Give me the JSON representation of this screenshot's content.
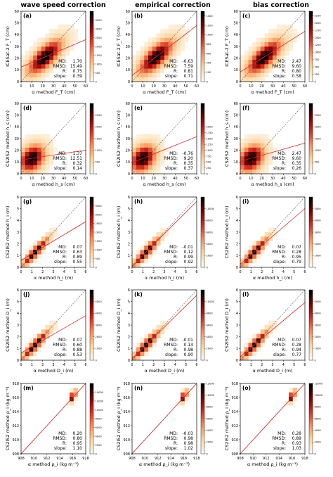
{
  "columns": [
    {
      "title": "wave speed correction",
      "stats_method": "wave speed correction"
    },
    {
      "title": "empirical correction",
      "stats_method": "empirical correction"
    },
    {
      "title": "bias correction",
      "stats_method": "bias correction"
    }
  ],
  "stat_labels": [
    "MD:",
    "RMSD:",
    "R:",
    "slope:"
  ],
  "rows": [
    {
      "xlabel": "α method F_T (cm)",
      "ylabel": "ICESat-2 F_T (cm)",
      "range": [
        0,
        60
      ],
      "ticks": [
        0,
        10,
        20,
        30,
        40,
        50,
        60
      ],
      "xtick_labels": [
        "0",
        "10",
        "20",
        "30",
        "40",
        "50",
        "60"
      ],
      "ytick_labels": [
        "0",
        "10",
        "20",
        "30",
        "40",
        "50",
        "60"
      ],
      "center": [
        0.37,
        0.35
      ],
      "spread": [
        0.15,
        0.14
      ],
      "rho": 0.72,
      "tail": 0.06
    },
    {
      "xlabel": "α method h_s (cm)",
      "ylabel": "CS2IS2 method h_s (cm)",
      "range": [
        0,
        60
      ],
      "ticks": [
        0,
        10,
        20,
        30,
        40,
        50,
        60
      ],
      "xtick_labels": [
        "0",
        "10",
        "20",
        "30",
        "40",
        "50",
        "60"
      ],
      "ytick_labels": [
        "0",
        "10",
        "20",
        "30",
        "40",
        "50",
        "60"
      ],
      "center": [
        0.17,
        0.22
      ],
      "spread": [
        0.11,
        0.11
      ],
      "rho": 0.3,
      "tail": 0.06
    },
    {
      "xlabel": "α method h_i (m)",
      "ylabel": "CS2IS2 method h_i (m)",
      "range": [
        0,
        6
      ],
      "ticks": [
        0,
        1,
        2,
        3,
        4,
        5,
        6
      ],
      "xtick_labels": [
        "0",
        "1",
        "2",
        "3",
        "4",
        "5",
        "6"
      ],
      "ytick_labels": [
        "0",
        "1",
        "2",
        "3",
        "4",
        "5",
        "6"
      ],
      "center": [
        0.22,
        0.22
      ],
      "spread": [
        0.12,
        0.12
      ],
      "rho": 0.93,
      "tail": 0.02
    },
    {
      "xlabel": "α method D_i (m)",
      "ylabel": "CS2IS2 method D_i (m)",
      "range": [
        0,
        6
      ],
      "ticks": [
        0,
        1,
        2,
        3,
        4,
        5,
        6
      ],
      "xtick_labels": [
        "0",
        "1",
        "2",
        "3",
        "4",
        "5",
        "6"
      ],
      "ytick_labels": [
        "0",
        "1",
        "2",
        "3",
        "4",
        "5",
        "6"
      ],
      "center": [
        0.22,
        0.22
      ],
      "spread": [
        0.12,
        0.12
      ],
      "rho": 0.93,
      "tail": 0.02
    },
    {
      "xlabel": "α method ρ_i (kg m⁻³)",
      "ylabel": "CS2IS2 method ρ_i (kg m⁻³)",
      "range": [
        908,
        918
      ],
      "ticks": [
        908,
        910,
        912,
        914,
        916,
        918
      ],
      "xtick_labels": [
        "908",
        "910",
        "912",
        "914",
        "916",
        "918"
      ],
      "ytick_labels": [
        "908",
        "910",
        "912",
        "914",
        "916",
        "918"
      ],
      "center": [
        0.8,
        0.82
      ],
      "spread": [
        0.03,
        0.05
      ],
      "rho": 0.6,
      "tail": 0.0
    }
  ],
  "panels": [
    {
      "label": "(a)",
      "MD": "1.70",
      "RMSD": "15.49",
      "R": "0.75",
      "slope": "0.39",
      "fit_slope": 0.39,
      "cmax": 4000,
      "cticks": [
        "0",
        "500",
        "1000",
        "1500",
        "2000",
        "2500",
        "3000",
        "3500"
      ]
    },
    {
      "label": "(b)",
      "MD": "-0.63",
      "RMSD": "7.59",
      "R": "0.81",
      "slope": "0.71",
      "fit_slope": 0.71,
      "cmax": 1500,
      "cticks": [
        "0",
        "200",
        "400",
        "600",
        "800",
        "1000",
        "1200",
        "1400"
      ]
    },
    {
      "label": "(c)",
      "MD": "2.47",
      "RMSD": "9.60",
      "R": "0.80",
      "slope": "0.58",
      "fit_slope": 0.58,
      "cmax": 2400,
      "cticks": [
        "0",
        "250",
        "500",
        "750",
        "1000",
        "1250",
        "1500",
        "1750",
        "2000",
        "2250"
      ]
    },
    {
      "label": "(d)",
      "MD": "1.37",
      "RMSD": "12.51",
      "R": "0.32",
      "slope": "0.14",
      "fit_slope": 0.14,
      "cmax": 3000,
      "cticks": [
        "0",
        "500",
        "1000",
        "1500",
        "2000",
        "2500"
      ]
    },
    {
      "label": "(e)",
      "MD": "-0.76",
      "RMSD": "9.20",
      "R": "0.35",
      "slope": "0.37",
      "fit_slope": 0.37,
      "cmax": 3000,
      "cticks": [
        "0",
        "250",
        "500",
        "750",
        "1000",
        "1250",
        "1500",
        "1750",
        "2000"
      ]
    },
    {
      "label": "(f)",
      "MD": "2.47",
      "RMSD": "9.60",
      "R": "0.35",
      "slope": "0.26",
      "fit_slope": 0.26,
      "cmax": 3000,
      "cticks": [
        "0",
        "500",
        "1000",
        "1500",
        "2000",
        "2500"
      ]
    },
    {
      "label": "(g)",
      "MD": "0.07",
      "RMSD": "0.63",
      "R": "0.89",
      "slope": "0.55",
      "fit_slope": 0.55,
      "cmax": 4000,
      "cticks": [
        "0",
        "500",
        "1000",
        "1500",
        "2000",
        "2500",
        "3000",
        "3500"
      ]
    },
    {
      "label": "(h)",
      "MD": "-0.01",
      "RMSD": "0.12",
      "R": "0.99",
      "slope": "0.92",
      "fit_slope": 0.92,
      "cmax": 12000,
      "cticks": [
        "0",
        "2000",
        "4000",
        "6000",
        "8000",
        "10000"
      ]
    },
    {
      "label": "(i)",
      "MD": "0.07",
      "RMSD": "0.28",
      "R": "0.95",
      "slope": "0.79",
      "fit_slope": 0.79,
      "cmax": 6000,
      "cticks": [
        "0",
        "1000",
        "2000",
        "3000",
        "4000",
        "5000"
      ]
    },
    {
      "label": "(j)",
      "MD": "0.07",
      "RMSD": "0.60",
      "R": "0.88",
      "slope": "0.53",
      "fit_slope": 0.53,
      "cmax": 6000,
      "cticks": [
        "0",
        "1000",
        "2000",
        "3000",
        "4000",
        "5000"
      ]
    },
    {
      "label": "(k)",
      "MD": "-0.01",
      "RMSD": "0.14",
      "R": "0.98",
      "slope": "0.90",
      "fit_slope": 0.9,
      "cmax": 12000,
      "cticks": [
        "0",
        "2000",
        "4000",
        "6000",
        "8000",
        "10000"
      ]
    },
    {
      "label": "(l)",
      "MD": "0.07",
      "RMSD": "0.28",
      "R": "0.94",
      "slope": "0.77",
      "fit_slope": 0.77,
      "cmax": 6000,
      "cticks": [
        "0",
        "1000",
        "2000",
        "3000",
        "4000",
        "5000"
      ]
    },
    {
      "label": "(m)",
      "MD": "0.20",
      "RMSD": "0.80",
      "R": "0.95",
      "slope": "1.10",
      "fit_slope": 1.1,
      "cmax": 16000,
      "cticks": [
        "0",
        "2000",
        "4000",
        "6000",
        "8000",
        "10000",
        "12000",
        "14000"
      ]
    },
    {
      "label": "(n)",
      "MD": "-0.03",
      "RMSD": "0.98",
      "R": "0.98",
      "slope": "1.02",
      "fit_slope": 1.02,
      "cmax": 12000,
      "cticks": [
        "0",
        "2000",
        "4000",
        "6000",
        "8000",
        "10000",
        "12000"
      ]
    },
    {
      "label": "(o)",
      "MD": "0.28",
      "RMSD": "0.89",
      "R": "0.93",
      "slope": "1.03",
      "fit_slope": 1.03,
      "cmax": 12000,
      "cticks": [
        "0",
        "2000",
        "4000",
        "6000",
        "8000",
        "10000",
        "12000"
      ]
    }
  ],
  "colors": {
    "identity_line": "#555555",
    "fit_line": "#d62728",
    "cmap": [
      "#fff7ec",
      "#fdd49e",
      "#fc8d59",
      "#d7301f",
      "#7f0000",
      "#000000"
    ]
  },
  "chart_data": {
    "type": "heatmap",
    "description_rows": [
      "F_T",
      "h_s",
      "h_i",
      "D_i",
      "rho_i"
    ],
    "columns": [
      "wave speed correction",
      "empirical correction",
      "bias correction"
    ],
    "stats": [
      {
        "panel": "(a)",
        "MD": 1.7,
        "RMSD": 15.49,
        "R": 0.75,
        "slope": 0.39
      },
      {
        "panel": "(b)",
        "MD": -0.63,
        "RMSD": 7.59,
        "R": 0.81,
        "slope": 0.71
      },
      {
        "panel": "(c)",
        "MD": 2.47,
        "RMSD": 9.6,
        "R": 0.8,
        "slope": 0.58
      },
      {
        "panel": "(d)",
        "MD": 1.37,
        "RMSD": 12.51,
        "R": 0.32,
        "slope": 0.14
      },
      {
        "panel": "(e)",
        "MD": -0.76,
        "RMSD": 9.2,
        "R": 0.35,
        "slope": 0.37
      },
      {
        "panel": "(f)",
        "MD": 2.47,
        "RMSD": 9.6,
        "R": 0.35,
        "slope": 0.26
      },
      {
        "panel": "(g)",
        "MD": 0.07,
        "RMSD": 0.63,
        "R": 0.89,
        "slope": 0.55
      },
      {
        "panel": "(h)",
        "MD": -0.01,
        "RMSD": 0.12,
        "R": 0.99,
        "slope": 0.92
      },
      {
        "panel": "(i)",
        "MD": 0.07,
        "RMSD": 0.28,
        "R": 0.95,
        "slope": 0.79
      },
      {
        "panel": "(j)",
        "MD": 0.07,
        "RMSD": 0.6,
        "R": 0.88,
        "slope": 0.53
      },
      {
        "panel": "(k)",
        "MD": -0.01,
        "RMSD": 0.14,
        "R": 0.98,
        "slope": 0.9
      },
      {
        "panel": "(l)",
        "MD": 0.07,
        "RMSD": 0.28,
        "R": 0.94,
        "slope": 0.77
      },
      {
        "panel": "(m)",
        "MD": 0.2,
        "RMSD": 0.8,
        "R": 0.95,
        "slope": 1.1
      },
      {
        "panel": "(n)",
        "MD": -0.03,
        "RMSD": 0.98,
        "R": 0.98,
        "slope": 1.02
      },
      {
        "panel": "(o)",
        "MD": 0.28,
        "RMSD": 0.89,
        "R": 0.93,
        "slope": 1.03
      }
    ],
    "grid": false
  }
}
